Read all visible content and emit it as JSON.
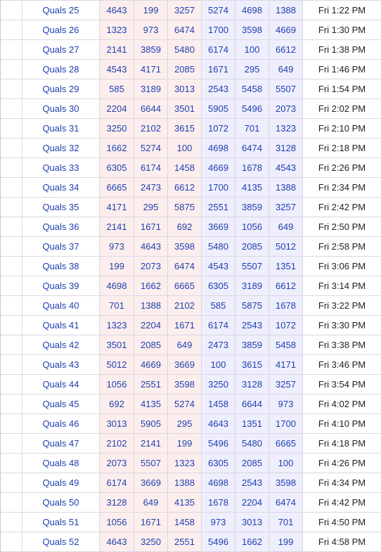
{
  "schedule": {
    "rows": [
      {
        "match": "Quals 25",
        "teams": [
          "4643",
          "199",
          "3257",
          "5274",
          "4698",
          "1388"
        ],
        "time": "Fri 1:22 PM"
      },
      {
        "match": "Quals 26",
        "teams": [
          "1323",
          "973",
          "6474",
          "1700",
          "3598",
          "4669"
        ],
        "time": "Fri 1:30 PM"
      },
      {
        "match": "Quals 27",
        "teams": [
          "2141",
          "3859",
          "5480",
          "6174",
          "100",
          "6612"
        ],
        "time": "Fri 1:38 PM"
      },
      {
        "match": "Quals 28",
        "teams": [
          "4543",
          "4171",
          "2085",
          "1671",
          "295",
          "649"
        ],
        "time": "Fri 1:46 PM"
      },
      {
        "match": "Quals 29",
        "teams": [
          "585",
          "3189",
          "3013",
          "2543",
          "5458",
          "5507"
        ],
        "time": "Fri 1:54 PM"
      },
      {
        "match": "Quals 30",
        "teams": [
          "2204",
          "6644",
          "3501",
          "5905",
          "5496",
          "2073"
        ],
        "time": "Fri 2:02 PM"
      },
      {
        "match": "Quals 31",
        "teams": [
          "3250",
          "2102",
          "3615",
          "1072",
          "701",
          "1323"
        ],
        "time": "Fri 2:10 PM"
      },
      {
        "match": "Quals 32",
        "teams": [
          "1662",
          "5274",
          "100",
          "4698",
          "6474",
          "3128"
        ],
        "time": "Fri 2:18 PM"
      },
      {
        "match": "Quals 33",
        "teams": [
          "6305",
          "6174",
          "1458",
          "4669",
          "1678",
          "4543"
        ],
        "time": "Fri 2:26 PM"
      },
      {
        "match": "Quals 34",
        "teams": [
          "6665",
          "2473",
          "6612",
          "1700",
          "4135",
          "1388"
        ],
        "time": "Fri 2:34 PM"
      },
      {
        "match": "Quals 35",
        "teams": [
          "4171",
          "295",
          "5875",
          "2551",
          "3859",
          "3257"
        ],
        "time": "Fri 2:42 PM"
      },
      {
        "match": "Quals 36",
        "teams": [
          "2141",
          "1671",
          "692",
          "3669",
          "1056",
          "649"
        ],
        "time": "Fri 2:50 PM"
      },
      {
        "match": "Quals 37",
        "teams": [
          "973",
          "4643",
          "3598",
          "5480",
          "2085",
          "5012"
        ],
        "time": "Fri 2:58 PM"
      },
      {
        "match": "Quals 38",
        "teams": [
          "199",
          "2073",
          "6474",
          "4543",
          "5507",
          "1351"
        ],
        "time": "Fri 3:06 PM"
      },
      {
        "match": "Quals 39",
        "teams": [
          "4698",
          "1662",
          "6665",
          "6305",
          "3189",
          "6612"
        ],
        "time": "Fri 3:14 PM"
      },
      {
        "match": "Quals 40",
        "teams": [
          "701",
          "1388",
          "2102",
          "585",
          "5875",
          "1678"
        ],
        "time": "Fri 3:22 PM"
      },
      {
        "match": "Quals 41",
        "teams": [
          "1323",
          "2204",
          "1671",
          "6174",
          "2543",
          "1072"
        ],
        "time": "Fri 3:30 PM"
      },
      {
        "match": "Quals 42",
        "teams": [
          "3501",
          "2085",
          "649",
          "2473",
          "3859",
          "5458"
        ],
        "time": "Fri 3:38 PM"
      },
      {
        "match": "Quals 43",
        "teams": [
          "5012",
          "4669",
          "3669",
          "100",
          "3615",
          "4171"
        ],
        "time": "Fri 3:46 PM"
      },
      {
        "match": "Quals 44",
        "teams": [
          "1056",
          "2551",
          "3598",
          "3250",
          "3128",
          "3257"
        ],
        "time": "Fri 3:54 PM"
      },
      {
        "match": "Quals 45",
        "teams": [
          "692",
          "4135",
          "5274",
          "1458",
          "6644",
          "973"
        ],
        "time": "Fri 4:02 PM"
      },
      {
        "match": "Quals 46",
        "teams": [
          "3013",
          "5905",
          "295",
          "4643",
          "1351",
          "1700"
        ],
        "time": "Fri 4:10 PM"
      },
      {
        "match": "Quals 47",
        "teams": [
          "2102",
          "2141",
          "199",
          "5496",
          "5480",
          "6665"
        ],
        "time": "Fri 4:18 PM"
      },
      {
        "match": "Quals 48",
        "teams": [
          "2073",
          "5507",
          "1323",
          "6305",
          "2085",
          "100"
        ],
        "time": "Fri 4:26 PM"
      },
      {
        "match": "Quals 49",
        "teams": [
          "6174",
          "3669",
          "1388",
          "4698",
          "2543",
          "3598"
        ],
        "time": "Fri 4:34 PM"
      },
      {
        "match": "Quals 50",
        "teams": [
          "3128",
          "649",
          "4135",
          "1678",
          "2204",
          "6474"
        ],
        "time": "Fri 4:42 PM"
      },
      {
        "match": "Quals 51",
        "teams": [
          "1056",
          "1671",
          "1458",
          "973",
          "3013",
          "701"
        ],
        "time": "Fri 4:50 PM"
      },
      {
        "match": "Quals 52",
        "teams": [
          "4643",
          "3250",
          "2551",
          "5496",
          "1662",
          "199"
        ],
        "time": "Fri 4:58 PM"
      }
    ]
  },
  "colors": {
    "red_alliance_bg": "#fdeeee",
    "blue_alliance_bg": "#eeeefd",
    "link": "#1f3fae",
    "time_text": "#222222"
  }
}
